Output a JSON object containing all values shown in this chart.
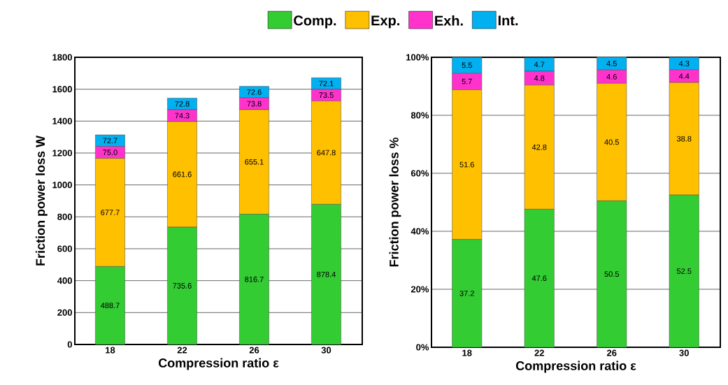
{
  "chart_data": [
    {
      "type": "bar",
      "stacked": true,
      "categories": [
        "18",
        "22",
        "26",
        "30"
      ],
      "xlabel": "Compression ratio ε",
      "ylabel": "Friction power loss W",
      "ylim": [
        0,
        1800
      ],
      "yticks": [
        0,
        200,
        400,
        600,
        800,
        1000,
        1200,
        1400,
        1600,
        1800
      ],
      "grid": "y",
      "legend": "top",
      "series": [
        {
          "name": "Comp.",
          "color": "#33cc33",
          "values": [
            488.7,
            735.6,
            816.7,
            878.4
          ],
          "value_labels": [
            "488.7",
            "735.6",
            "816.7",
            "878.4"
          ]
        },
        {
          "name": "Exp.",
          "color": "#ffc000",
          "values": [
            677.7,
            661.6,
            655.1,
            647.8
          ],
          "value_labels": [
            "677.7",
            "661.6",
            "655.1",
            "647.8"
          ]
        },
        {
          "name": "Exh.",
          "color": "#ff33cc",
          "values": [
            75.0,
            74.3,
            73.8,
            73.5
          ],
          "value_labels": [
            "75.0",
            "74.3",
            "73.8",
            "73.5"
          ]
        },
        {
          "name": "Int.",
          "color": "#00b0f0",
          "values": [
            72.7,
            72.8,
            72.6,
            72.1
          ],
          "value_labels": [
            "72.7",
            "72.8",
            "72.6",
            "72.1"
          ]
        }
      ]
    },
    {
      "type": "bar",
      "stacked": true,
      "categories": [
        "18",
        "22",
        "26",
        "30"
      ],
      "xlabel": "Compression ratio ε",
      "ylabel": "Friction power loss %",
      "ylim": [
        0,
        100
      ],
      "yticks": [
        {
          "value": 0,
          "label": "0%"
        },
        {
          "value": 20,
          "label": "20%"
        },
        {
          "value": 40,
          "label": "40%"
        },
        {
          "value": 60,
          "label": "60%"
        },
        {
          "value": 80,
          "label": "80%"
        },
        {
          "value": 100,
          "label": "100%"
        }
      ],
      "grid": "y",
      "data_labels": true,
      "series": [
        {
          "color": "#33cc33",
          "values": [
            37.2,
            47.6,
            50.5,
            52.5
          ]
        },
        {
          "color": "#ffc000",
          "values": [
            51.6,
            42.8,
            40.5,
            38.8
          ]
        },
        {
          "color": "#ff33cc",
          "values": [
            5.7,
            4.8,
            4.6,
            4.4
          ]
        },
        {
          "color": "#00b0f0",
          "values": [
            5.5,
            4.7,
            4.5,
            4.3
          ]
        }
      ]
    }
  ]
}
